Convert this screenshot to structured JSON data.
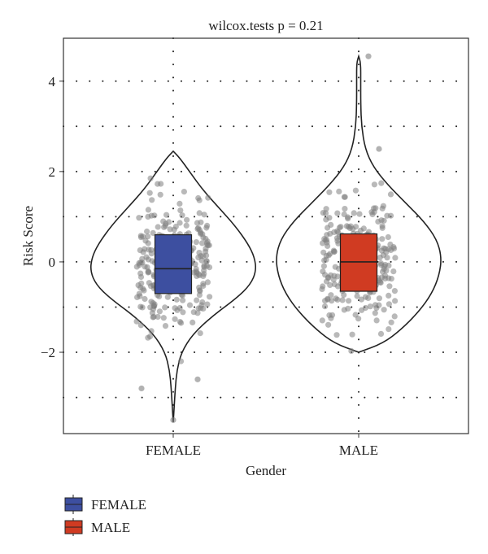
{
  "chart_data": {
    "type": "violin",
    "title": "wilcox.tests p = 0.21",
    "xlabel": "Gender",
    "ylabel": "Risk Score",
    "categories": [
      "FEMALE",
      "MALE"
    ],
    "ylim": [
      -3.8,
      4.95
    ],
    "yticks": [
      -2,
      0,
      2,
      4
    ],
    "grid": "dotted",
    "legend_position": "bottom-left",
    "colors": {
      "FEMALE": "#3d4fa0",
      "MALE": "#d03b22",
      "points": "#808080"
    },
    "series": [
      {
        "name": "FEMALE",
        "box": {
          "q1": -0.7,
          "median": -0.15,
          "q3": 0.6
        },
        "violin_range": [
          -3.55,
          2.45
        ]
      },
      {
        "name": "MALE",
        "box": {
          "q1": -0.65,
          "median": 0.0,
          "q3": 0.62
        },
        "violin_range": [
          -2.0,
          4.55
        ]
      }
    ],
    "legend": [
      "FEMALE",
      "MALE"
    ]
  }
}
